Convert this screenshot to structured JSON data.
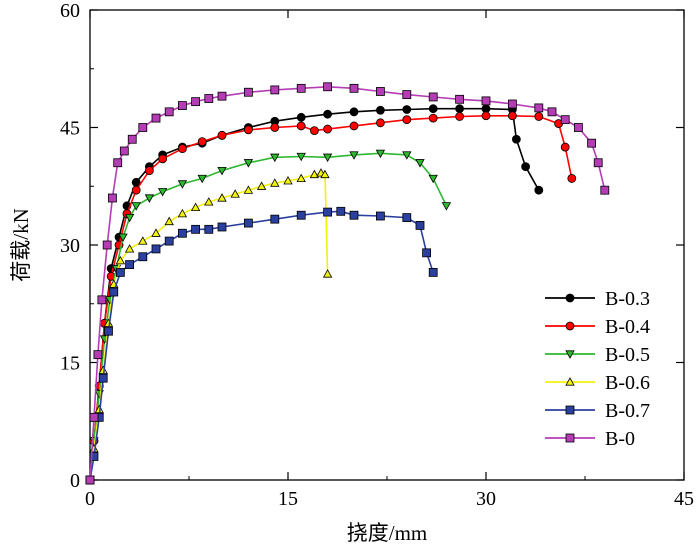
{
  "chart_data": {
    "type": "line",
    "title": "",
    "xlabel": "挠度/mm",
    "ylabel": "荷载/kN",
    "xlim": [
      0,
      45
    ],
    "ylim": [
      0,
      60
    ],
    "xticks": [
      0,
      15,
      30,
      45
    ],
    "yticks": [
      0,
      15,
      30,
      45,
      60
    ],
    "xtick_labels": [
      "0",
      "15",
      "30",
      "45"
    ],
    "ytick_labels": [
      "0",
      "15",
      "30",
      "45",
      "60"
    ],
    "legend_position": "bottom-right",
    "series": [
      {
        "name": "B-0.3",
        "color": "#000000",
        "marker": "circle",
        "points": [
          [
            0,
            0
          ],
          [
            0.3,
            5
          ],
          [
            0.7,
            12
          ],
          [
            1.1,
            20
          ],
          [
            1.6,
            27
          ],
          [
            2.2,
            31
          ],
          [
            2.8,
            35
          ],
          [
            3.5,
            38
          ],
          [
            4.5,
            40
          ],
          [
            5.5,
            41.5
          ],
          [
            7,
            42.5
          ],
          [
            8.5,
            43
          ],
          [
            10,
            44
          ],
          [
            12,
            45
          ],
          [
            14,
            45.8
          ],
          [
            16,
            46.3
          ],
          [
            18,
            46.7
          ],
          [
            20,
            47
          ],
          [
            22,
            47.2
          ],
          [
            24,
            47.3
          ],
          [
            26,
            47.4
          ],
          [
            28,
            47.4
          ],
          [
            30,
            47.4
          ],
          [
            32,
            47.3
          ],
          [
            32.3,
            43.5
          ],
          [
            33,
            40
          ],
          [
            34,
            37
          ]
        ]
      },
      {
        "name": "B-0.4",
        "color": "#ff0000",
        "marker": "circle",
        "points": [
          [
            0,
            0
          ],
          [
            0.3,
            5
          ],
          [
            0.7,
            12
          ],
          [
            1.1,
            20
          ],
          [
            1.6,
            26
          ],
          [
            2.2,
            30
          ],
          [
            2.8,
            34
          ],
          [
            3.5,
            37
          ],
          [
            4.5,
            39.5
          ],
          [
            5.5,
            41
          ],
          [
            7,
            42.3
          ],
          [
            8.5,
            43.2
          ],
          [
            10,
            44
          ],
          [
            12,
            44.7
          ],
          [
            14,
            45
          ],
          [
            16,
            45.2
          ],
          [
            17,
            44.6
          ],
          [
            18,
            44.8
          ],
          [
            20,
            45.2
          ],
          [
            22,
            45.6
          ],
          [
            24,
            46
          ],
          [
            26,
            46.2
          ],
          [
            28,
            46.4
          ],
          [
            30,
            46.5
          ],
          [
            32,
            46.5
          ],
          [
            34,
            46.4
          ],
          [
            35.5,
            45.5
          ],
          [
            36,
            42.5
          ],
          [
            36.5,
            38.5
          ]
        ]
      },
      {
        "name": "B-0.5",
        "color": "#2db82d",
        "marker": "triangle-down",
        "points": [
          [
            0,
            0
          ],
          [
            0.3,
            5
          ],
          [
            0.7,
            11
          ],
          [
            1.1,
            18
          ],
          [
            1.5,
            23
          ],
          [
            2,
            27
          ],
          [
            2.5,
            31
          ],
          [
            3,
            33.5
          ],
          [
            3.5,
            35
          ],
          [
            4.5,
            36
          ],
          [
            5.5,
            36.8
          ],
          [
            7,
            37.8
          ],
          [
            8.5,
            38.5
          ],
          [
            10,
            39.5
          ],
          [
            12,
            40.5
          ],
          [
            14,
            41.2
          ],
          [
            16,
            41.3
          ],
          [
            18,
            41.2
          ],
          [
            20,
            41.5
          ],
          [
            22,
            41.7
          ],
          [
            24,
            41.5
          ],
          [
            25,
            40.5
          ],
          [
            26,
            38.5
          ],
          [
            27,
            35
          ]
        ]
      },
      {
        "name": "B-0.6",
        "color": "#f2f20a",
        "marker": "triangle-up",
        "points": [
          [
            0,
            0
          ],
          [
            0.3,
            4
          ],
          [
            0.7,
            9
          ],
          [
            1,
            14
          ],
          [
            1.4,
            20
          ],
          [
            1.8,
            25
          ],
          [
            2.3,
            28
          ],
          [
            3,
            29.5
          ],
          [
            4,
            30.5
          ],
          [
            5,
            31.5
          ],
          [
            6,
            33
          ],
          [
            7,
            34
          ],
          [
            8,
            34.8
          ],
          [
            9,
            35.5
          ],
          [
            10,
            36
          ],
          [
            11,
            36.5
          ],
          [
            12,
            37
          ],
          [
            13,
            37.5
          ],
          [
            14,
            37.9
          ],
          [
            15,
            38.2
          ],
          [
            16,
            38.5
          ],
          [
            17,
            39
          ],
          [
            17.5,
            39.2
          ],
          [
            17.8,
            39
          ],
          [
            18,
            26.3
          ]
        ]
      },
      {
        "name": "B-0.7",
        "color": "#2b3f9e",
        "marker": "square",
        "points": [
          [
            0,
            0
          ],
          [
            0.3,
            3
          ],
          [
            0.7,
            8
          ],
          [
            1,
            13
          ],
          [
            1.4,
            19
          ],
          [
            1.8,
            24
          ],
          [
            2.3,
            26.5
          ],
          [
            3,
            27.5
          ],
          [
            4,
            28.5
          ],
          [
            5,
            29.5
          ],
          [
            6,
            30.5
          ],
          [
            7,
            31.5
          ],
          [
            8,
            32
          ],
          [
            9,
            32
          ],
          [
            10,
            32.3
          ],
          [
            12,
            32.8
          ],
          [
            14,
            33.3
          ],
          [
            16,
            33.8
          ],
          [
            18,
            34.2
          ],
          [
            19,
            34.3
          ],
          [
            20,
            33.8
          ],
          [
            22,
            33.7
          ],
          [
            24,
            33.5
          ],
          [
            25,
            32.5
          ],
          [
            25.5,
            29
          ],
          [
            26,
            26.5
          ]
        ]
      },
      {
        "name": "B-0",
        "color": "#b43cb4",
        "marker": "square",
        "points": [
          [
            0,
            0
          ],
          [
            0.3,
            8
          ],
          [
            0.6,
            16
          ],
          [
            0.9,
            23
          ],
          [
            1.3,
            30
          ],
          [
            1.7,
            36
          ],
          [
            2.1,
            40.5
          ],
          [
            2.6,
            42
          ],
          [
            3.2,
            43.5
          ],
          [
            4,
            45
          ],
          [
            5,
            46.2
          ],
          [
            6,
            47
          ],
          [
            7,
            47.8
          ],
          [
            8,
            48.3
          ],
          [
            9,
            48.7
          ],
          [
            10,
            49
          ],
          [
            12,
            49.5
          ],
          [
            14,
            49.8
          ],
          [
            16,
            50
          ],
          [
            18,
            50.2
          ],
          [
            20,
            50
          ],
          [
            22,
            49.6
          ],
          [
            24,
            49.2
          ],
          [
            26,
            48.9
          ],
          [
            28,
            48.6
          ],
          [
            30,
            48.4
          ],
          [
            32,
            48
          ],
          [
            34,
            47.5
          ],
          [
            35,
            47
          ],
          [
            36,
            46
          ],
          [
            37,
            45
          ],
          [
            38,
            43
          ],
          [
            38.5,
            40.5
          ],
          [
            39,
            37
          ]
        ]
      }
    ]
  }
}
